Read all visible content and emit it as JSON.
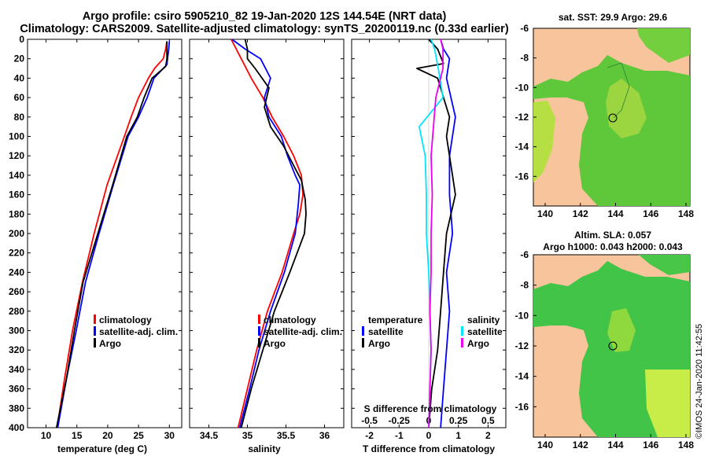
{
  "titles": {
    "line1": "Argo profile: csiro 5905210_82 19-Jan-2020 12S 144.54E (NRT data)",
    "line2": "Climatology: CARS2009. Satellite-adjusted climatology: synTS_20200119.nc (0.33d earlier)"
  },
  "colors": {
    "climatology": "#ff0000",
    "satellite": "#0000ff",
    "argo": "#000000",
    "s_satellite": "#00e5ff",
    "s_argo": "#ee00ee",
    "land": "#f7c49b"
  },
  "depth_ticks": [
    "0",
    "20",
    "40",
    "60",
    "80",
    "100",
    "120",
    "140",
    "160",
    "180",
    "200",
    "220",
    "240",
    "260",
    "280",
    "300",
    "320",
    "340",
    "360",
    "380",
    "400"
  ],
  "map_ticks": {
    "lon": [
      "140",
      "142",
      "144",
      "146",
      "148"
    ],
    "lat": [
      "-6",
      "-8",
      "-10",
      "-12",
      "-14",
      "-16"
    ]
  },
  "map1": {
    "title": "sat. SST: 29.9 Argo: 29.6"
  },
  "map2": {
    "title_line1": "Altim. SLA: 0.057",
    "title_line2": "Argo h1000: 0.043 h2000: 0.043"
  },
  "credit": "©IMOS 24-Jan-2020 11:42:55",
  "chart_data": [
    {
      "type": "line",
      "title": "",
      "xlabel": "temperature (deg C)",
      "ylabel": "",
      "xlim": [
        7,
        32
      ],
      "ylim": [
        0,
        400
      ],
      "xticks": [
        "10",
        "15",
        "20",
        "25",
        "30"
      ],
      "legend": [
        "climatology",
        "satellite-adj. clim.",
        "Argo"
      ],
      "series": [
        {
          "name": "climatology",
          "color": "#ff0000",
          "depth": [
            2,
            10,
            20,
            30,
            40,
            60,
            80,
            100,
            150,
            200,
            250,
            300,
            350,
            400
          ],
          "values": [
            29.6,
            29.4,
            29.0,
            27.6,
            26.6,
            25.0,
            23.8,
            22.7,
            19.9,
            17.8,
            15.9,
            14.3,
            13.0,
            11.8
          ]
        },
        {
          "name": "satellite-adj. clim.",
          "color": "#0000ff",
          "depth": [
            2,
            10,
            20,
            26,
            40,
            60,
            80,
            100,
            150,
            200,
            250,
            300,
            350,
            400
          ],
          "values": [
            30.0,
            29.9,
            29.7,
            29.6,
            27.5,
            26.4,
            25.0,
            23.3,
            20.9,
            18.6,
            16.4,
            14.9,
            13.3,
            11.9
          ]
        },
        {
          "name": "Argo",
          "color": "#000000",
          "depth": [
            2,
            10,
            20,
            28,
            40,
            60,
            80,
            100,
            150,
            200,
            250,
            300,
            350,
            400
          ],
          "values": [
            29.6,
            29.6,
            29.6,
            29.4,
            27.2,
            25.9,
            24.8,
            23.1,
            20.8,
            18.4,
            16.0,
            14.6,
            13.3,
            11.7
          ]
        }
      ]
    },
    {
      "type": "line",
      "title": "",
      "xlabel": "salinity",
      "ylabel": "",
      "xlim": [
        34.25,
        36.25
      ],
      "ylim": [
        0,
        400
      ],
      "xticks": [
        "34.5",
        "35",
        "35.5",
        "36"
      ],
      "legend": [
        "climatology",
        "satellite-adj. clim.",
        "Argo"
      ],
      "series": [
        {
          "name": "climatology",
          "color": "#ff0000",
          "depth": [
            0,
            20,
            40,
            60,
            80,
            100,
            120,
            140,
            160,
            180,
            200,
            240,
            280,
            320,
            360,
            400
          ],
          "values": [
            34.79,
            34.92,
            35.05,
            35.2,
            35.32,
            35.47,
            35.6,
            35.7,
            35.72,
            35.68,
            35.6,
            35.45,
            35.26,
            35.12,
            35.0,
            34.88
          ]
        },
        {
          "name": "satellite-adj. clim.",
          "color": "#0000ff",
          "depth": [
            0,
            10,
            20,
            40,
            60,
            80,
            100,
            120,
            140,
            150,
            170,
            200,
            240,
            280,
            320,
            360,
            400
          ],
          "values": [
            34.8,
            34.97,
            35.17,
            35.3,
            35.22,
            35.28,
            35.44,
            35.52,
            35.62,
            35.68,
            35.66,
            35.62,
            35.48,
            35.3,
            35.15,
            35.03,
            34.9
          ]
        },
        {
          "name": "Argo",
          "color": "#000000",
          "depth": [
            0,
            10,
            20,
            30,
            50,
            70,
            90,
            110,
            130,
            145,
            165,
            180,
            200,
            240,
            280,
            320,
            360,
            400
          ],
          "values": [
            34.97,
            35.0,
            35.0,
            35.1,
            35.28,
            35.22,
            35.3,
            35.47,
            35.6,
            35.7,
            35.75,
            35.76,
            35.74,
            35.55,
            35.35,
            35.2,
            35.05,
            34.92
          ]
        }
      ]
    },
    {
      "type": "line",
      "title": "",
      "xlabel": "T difference from climatology",
      "xlabel_top": "S difference from climatology",
      "xlim": [
        -2.6,
        2.6
      ],
      "ylim": [
        0,
        400
      ],
      "xticks": [
        "-2",
        "-1",
        "0",
        "1",
        "2"
      ],
      "xticks_top": [
        "-0.5",
        "-0.25",
        "0",
        "0.25",
        "0.5"
      ],
      "legend_left_title": "temperature",
      "legend_left": [
        "satellite",
        "Argo"
      ],
      "legend_right_title": "salinity",
      "legend_right": [
        "satellite",
        "Argo"
      ],
      "series": [
        {
          "name": "T satellite",
          "color": "#0000ff",
          "depth": [
            0,
            10,
            20,
            40,
            80,
            120,
            160,
            200,
            240,
            280,
            320,
            360,
            400
          ],
          "values": [
            0.4,
            0.5,
            0.7,
            0.6,
            0.9,
            0.7,
            0.7,
            0.8,
            0.6,
            0.7,
            0.6,
            0.5,
            0.4
          ]
        },
        {
          "name": "T Argo",
          "color": "#000000",
          "depth": [
            0,
            10,
            25,
            30,
            40,
            60,
            80,
            100,
            120,
            140,
            160,
            200,
            240,
            280,
            320,
            360,
            400
          ],
          "values": [
            0.0,
            0.3,
            0.5,
            -0.4,
            0.3,
            0.5,
            0.7,
            0.6,
            0.7,
            0.8,
            0.9,
            0.6,
            0.5,
            0.4,
            0.3,
            0.1,
            0.0
          ]
        },
        {
          "name": "S satellite",
          "color": "#00e5ff",
          "depth": [
            0,
            10,
            30,
            60,
            90,
            120,
            160,
            200,
            240,
            280,
            320,
            360,
            400
          ],
          "values": [
            0.02,
            0.05,
            0.08,
            0.12,
            -0.08,
            -0.03,
            -0.02,
            -0.02,
            0.0,
            0.01,
            0.02,
            0.01,
            0.0
          ]
        },
        {
          "name": "S Argo",
          "color": "#ee00ee",
          "depth": [
            0,
            10,
            30,
            60,
            90,
            120,
            160,
            200,
            240,
            280,
            320,
            360,
            400
          ],
          "values": [
            0.1,
            0.12,
            0.12,
            0.06,
            0.04,
            0.02,
            0.03,
            0.02,
            0.02,
            0.01,
            0.02,
            0.01,
            0.0
          ]
        }
      ]
    }
  ]
}
